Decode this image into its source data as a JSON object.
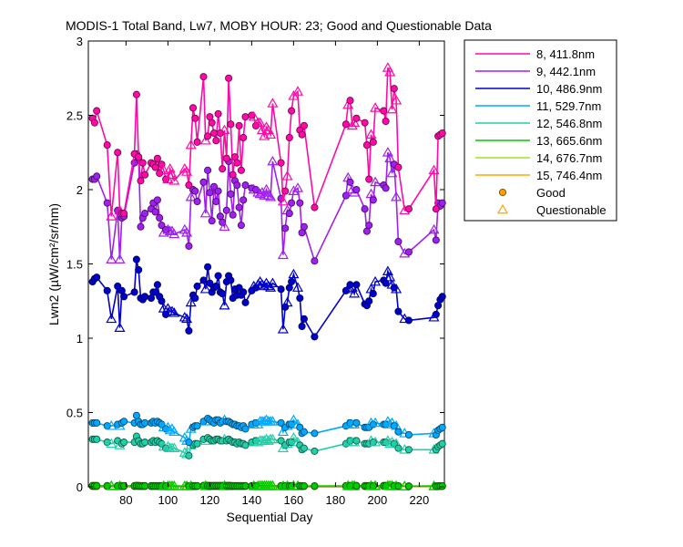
{
  "chart_data": {
    "type": "line",
    "title": "MODIS-1 Total Band, Lw7, MOBY HOUR: 23;  Good and Questionable Data",
    "xlabel": "Sequential Day",
    "ylabel": "Lwn2 (µW/cm²/sr/nm)",
    "xlim": [
      62,
      232
    ],
    "ylim": [
      0,
      3
    ],
    "xticks": [
      "80",
      "100",
      "120",
      "140",
      "160",
      "180",
      "200",
      "220"
    ],
    "yticks": [
      "0",
      "0.5",
      "1",
      "1.5",
      "2",
      "2.5",
      "3"
    ],
    "grid": false,
    "legend_position": "outside-right",
    "legend_markers": {
      "good": "Good",
      "questionable": "Questionable"
    },
    "x": [
      64,
      65,
      66,
      71,
      73,
      76,
      77,
      78,
      79,
      84,
      85,
      86,
      87,
      88,
      89,
      92,
      93,
      94,
      95,
      96,
      97,
      98,
      99,
      100,
      101,
      102,
      103,
      108,
      109,
      110,
      111,
      112,
      113,
      114,
      117,
      118,
      119,
      120,
      121,
      122,
      123,
      124,
      125,
      126,
      127,
      128,
      129,
      130,
      131,
      132,
      133,
      134,
      135,
      136,
      137,
      140,
      141,
      142,
      143,
      144,
      145,
      146,
      147,
      148,
      149,
      150,
      154,
      155,
      156,
      157,
      158,
      159,
      160,
      162,
      163,
      164,
      165,
      170,
      185,
      186,
      187,
      188,
      189,
      190,
      194,
      195,
      196,
      197,
      198,
      199,
      203,
      204,
      205,
      206,
      207,
      208,
      209,
      210,
      213,
      215,
      227,
      228,
      229,
      230,
      231
    ],
    "quality": [
      "G",
      "G",
      "G",
      "G",
      "Q",
      "G",
      "Q",
      "G",
      "G",
      "G",
      "G",
      "G",
      "G",
      "G",
      "G",
      "G",
      "G",
      "G",
      "G",
      "G",
      "G",
      "Q",
      "G",
      "Q",
      "Q",
      "Q",
      "Q",
      "Q",
      "Q",
      "G",
      "Q",
      "G",
      "G",
      "G",
      "G",
      "Q",
      "G",
      "G",
      "G",
      "G",
      "G",
      "G",
      "G",
      "G",
      "Q",
      "G",
      "G",
      "G",
      "G",
      "G",
      "G",
      "G",
      "G",
      "G",
      "G",
      "G",
      "Q",
      "G",
      "Q",
      "Q",
      "Q",
      "Q",
      "Q",
      "Q",
      "Q",
      "Q",
      "G",
      "Q",
      "G",
      "Q",
      "G",
      "G",
      "Q",
      "Q",
      "G",
      "G",
      "G",
      "G",
      "G",
      "Q",
      "G",
      "Q",
      "Q",
      "G",
      "G",
      "G",
      "G",
      "Q",
      "G",
      "Q",
      "G",
      "G",
      "Q",
      "Q",
      "Q",
      "G",
      "Q",
      "G",
      "Q",
      "G",
      "Q",
      "G",
      "G",
      "G",
      "G"
    ],
    "series": [
      {
        "name": "8, 411.8nm",
        "color": "#ff0aa8",
        "values": [
          2.48,
          2.45,
          2.53,
          2.3,
          1.82,
          2.25,
          1.86,
          1.84,
          1.84,
          2.24,
          2.64,
          2.22,
          2.06,
          2.18,
          2.1,
          2.18,
          2.17,
          2.15,
          2.21,
          2.11,
          2.17,
          2.13,
          2.07,
          2.07,
          2.14,
          2.1,
          2.06,
          2.14,
          2.12,
          2.03,
          2.3,
          2.55,
          2.48,
          2.32,
          2.76,
          2.33,
          2.36,
          2.49,
          2.45,
          2.38,
          2.33,
          2.51,
          2.38,
          2.14,
          2.4,
          2.21,
          2.75,
          2.44,
          2.1,
          2.22,
          2.18,
          2.43,
          2.13,
          2.35,
          2.49,
          2.5,
          2.49,
          2.43,
          2.45,
          2.45,
          2.4,
          2.36,
          2.42,
          2.4,
          2.37,
          2.58,
          2.18,
          1.92,
          1.99,
          2.09,
          2.35,
          2.53,
          2.63,
          2.66,
          2.4,
          2.37,
          2.43,
          1.88,
          2.44,
          2.57,
          2.6,
          2.43,
          2.45,
          2.48,
          2.45,
          2.3,
          2.07,
          2.37,
          2.32,
          2.55,
          2.53,
          2.46,
          2.82,
          2.79,
          2.54,
          2.68,
          2.6,
          2.15,
          1.86,
          1.87,
          2.13,
          1.87,
          2.36,
          2.37,
          2.38
        ]
      },
      {
        "name": "9, 442.1nm",
        "color": "#a020f0",
        "values": [
          2.07,
          2.07,
          2.09,
          1.91,
          1.53,
          1.86,
          1.53,
          1.81,
          1.82,
          2.18,
          2.24,
          2.21,
          1.75,
          1.81,
          1.84,
          1.87,
          1.91,
          1.85,
          1.93,
          1.81,
          1.76,
          1.71,
          1.73,
          1.73,
          1.72,
          1.72,
          1.7,
          1.73,
          1.71,
          1.62,
          1.95,
          2.0,
          1.99,
          1.92,
          2.05,
          1.84,
          2.13,
          1.98,
          1.79,
          2.02,
          1.92,
          1.99,
          1.82,
          1.78,
          1.75,
          1.86,
          2.19,
          1.97,
          1.83,
          2.06,
          2.03,
          1.88,
          1.76,
          1.93,
          2.03,
          2.01,
          2.0,
          2.0,
          1.98,
          1.97,
          1.98,
          1.96,
          2.0,
          1.96,
          1.95,
          2.19,
          1.94,
          1.56,
          1.74,
          1.86,
          1.84,
          1.91,
          1.99,
          2.01,
          1.91,
          1.71,
          1.75,
          1.52,
          1.96,
          2.08,
          2.05,
          2.0,
          1.98,
          2.0,
          1.87,
          1.72,
          1.76,
          1.97,
          1.93,
          2.05,
          2.03,
          2.01,
          2.25,
          2.21,
          2.11,
          2.17,
          1.95,
          1.65,
          1.57,
          1.58,
          1.73,
          1.66,
          1.91,
          1.89,
          1.91
        ]
      },
      {
        "name": "10, 486.9nm",
        "color": "#0000cd",
        "values": [
          1.38,
          1.4,
          1.41,
          1.32,
          1.13,
          1.35,
          1.07,
          1.32,
          1.28,
          1.31,
          1.53,
          1.46,
          1.27,
          1.26,
          1.28,
          1.27,
          1.31,
          1.31,
          1.36,
          1.28,
          1.25,
          1.2,
          1.16,
          1.2,
          1.18,
          1.18,
          1.17,
          1.14,
          1.13,
          1.05,
          1.24,
          1.29,
          1.27,
          1.35,
          1.39,
          1.33,
          1.48,
          1.37,
          1.31,
          1.34,
          1.35,
          1.42,
          1.31,
          1.3,
          1.22,
          1.38,
          1.42,
          1.39,
          1.27,
          1.33,
          1.29,
          1.34,
          1.29,
          1.31,
          1.24,
          1.32,
          1.35,
          1.34,
          1.36,
          1.38,
          1.36,
          1.35,
          1.37,
          1.35,
          1.34,
          1.37,
          1.33,
          1.06,
          1.21,
          1.24,
          1.34,
          1.38,
          1.43,
          1.34,
          1.27,
          1.08,
          1.13,
          1.01,
          1.32,
          1.33,
          1.36,
          1.34,
          1.3,
          1.36,
          1.23,
          1.22,
          1.25,
          1.33,
          1.3,
          1.38,
          1.39,
          1.37,
          1.45,
          1.41,
          1.36,
          1.34,
          1.33,
          1.18,
          1.13,
          1.12,
          1.14,
          1.16,
          1.22,
          1.26,
          1.28
        ]
      },
      {
        "name": "11, 529.7nm",
        "color": "#00a8ff",
        "values": [
          0.43,
          0.43,
          0.43,
          0.41,
          0.41,
          0.42,
          0.41,
          0.43,
          0.44,
          0.43,
          0.48,
          0.44,
          0.42,
          0.42,
          0.43,
          0.43,
          0.44,
          0.43,
          0.44,
          0.43,
          0.42,
          0.4,
          0.39,
          0.4,
          0.38,
          0.39,
          0.37,
          0.33,
          0.31,
          0.3,
          0.39,
          0.4,
          0.41,
          0.41,
          0.44,
          0.44,
          0.46,
          0.45,
          0.44,
          0.43,
          0.45,
          0.45,
          0.43,
          0.44,
          0.45,
          0.44,
          0.44,
          0.43,
          0.42,
          0.42,
          0.41,
          0.41,
          0.4,
          0.41,
          0.39,
          0.42,
          0.42,
          0.43,
          0.42,
          0.44,
          0.44,
          0.44,
          0.45,
          0.44,
          0.44,
          0.44,
          0.43,
          0.37,
          0.4,
          0.41,
          0.42,
          0.42,
          0.45,
          0.42,
          0.4,
          0.36,
          0.37,
          0.36,
          0.41,
          0.42,
          0.43,
          0.42,
          0.42,
          0.43,
          0.4,
          0.4,
          0.4,
          0.43,
          0.42,
          0.43,
          0.42,
          0.42,
          0.44,
          0.42,
          0.43,
          0.41,
          0.41,
          0.37,
          0.36,
          0.35,
          0.36,
          0.35,
          0.38,
          0.39,
          0.4
        ]
      },
      {
        "name": "12, 546.8nm",
        "color": "#20d0a8",
        "values": [
          0.32,
          0.32,
          0.32,
          0.3,
          0.29,
          0.31,
          0.28,
          0.29,
          0.3,
          0.3,
          0.34,
          0.31,
          0.29,
          0.29,
          0.3,
          0.3,
          0.31,
          0.3,
          0.31,
          0.3,
          0.29,
          0.27,
          0.26,
          0.27,
          0.26,
          0.26,
          0.26,
          0.23,
          0.22,
          0.21,
          0.28,
          0.28,
          0.29,
          0.29,
          0.32,
          0.31,
          0.33,
          0.32,
          0.31,
          0.31,
          0.32,
          0.32,
          0.31,
          0.31,
          0.32,
          0.31,
          0.32,
          0.31,
          0.3,
          0.3,
          0.29,
          0.3,
          0.29,
          0.29,
          0.28,
          0.3,
          0.3,
          0.31,
          0.3,
          0.31,
          0.31,
          0.31,
          0.32,
          0.31,
          0.32,
          0.32,
          0.31,
          0.26,
          0.28,
          0.29,
          0.3,
          0.3,
          0.33,
          0.3,
          0.28,
          0.25,
          0.26,
          0.24,
          0.29,
          0.3,
          0.31,
          0.3,
          0.3,
          0.31,
          0.29,
          0.29,
          0.29,
          0.31,
          0.3,
          0.3,
          0.3,
          0.3,
          0.31,
          0.29,
          0.3,
          0.29,
          0.29,
          0.26,
          0.25,
          0.25,
          0.25,
          0.25,
          0.27,
          0.28,
          0.29
        ]
      },
      {
        "name": "13, 665.6nm",
        "color": "#00cc00",
        "values": [
          0.007,
          0.007,
          0.007,
          0.006,
          0.006,
          0.006,
          0.006,
          0.006,
          0.006,
          0.006,
          0.008,
          0.007,
          0.006,
          0.006,
          0.006,
          0.006,
          0.006,
          0.006,
          0.006,
          0.006,
          0.006,
          0.006,
          0.005,
          0.005,
          0.005,
          0.005,
          0.005,
          0.005,
          0.005,
          0.005,
          0.006,
          0.006,
          0.006,
          0.006,
          0.008,
          0.007,
          0.008,
          0.007,
          0.007,
          0.007,
          0.007,
          0.007,
          0.007,
          0.007,
          0.007,
          0.007,
          0.008,
          0.007,
          0.006,
          0.006,
          0.006,
          0.006,
          0.006,
          0.006,
          0.006,
          0.006,
          0.006,
          0.006,
          0.006,
          0.007,
          0.007,
          0.007,
          0.007,
          0.007,
          0.007,
          0.007,
          0.006,
          0.005,
          0.006,
          0.006,
          0.006,
          0.006,
          0.007,
          0.006,
          0.006,
          0.005,
          0.005,
          0.005,
          0.006,
          0.007,
          0.007,
          0.007,
          0.007,
          0.007,
          0.006,
          0.006,
          0.006,
          0.007,
          0.006,
          0.007,
          0.007,
          0.007,
          0.008,
          0.007,
          0.007,
          0.007,
          0.006,
          0.005,
          0.004,
          0.004,
          0.005,
          0.004,
          0.005,
          0.005,
          0.005
        ]
      },
      {
        "name": "14, 676.7nm",
        "color": "#a0e020",
        "values": [
          0.008,
          0.008,
          0.008,
          0.007,
          0.007,
          0.007,
          0.007,
          0.007,
          0.007,
          0.007,
          0.009,
          0.008,
          0.007,
          0.007,
          0.007,
          0.007,
          0.007,
          0.007,
          0.007,
          0.007,
          0.007,
          0.007,
          0.006,
          0.006,
          0.006,
          0.006,
          0.006,
          0.006,
          0.006,
          0.006,
          0.007,
          0.007,
          0.007,
          0.007,
          0.009,
          0.008,
          0.009,
          0.008,
          0.008,
          0.008,
          0.008,
          0.008,
          0.008,
          0.008,
          0.008,
          0.008,
          0.009,
          0.008,
          0.007,
          0.007,
          0.007,
          0.007,
          0.007,
          0.007,
          0.007,
          0.007,
          0.007,
          0.007,
          0.007,
          0.008,
          0.008,
          0.008,
          0.008,
          0.008,
          0.008,
          0.008,
          0.007,
          0.006,
          0.007,
          0.007,
          0.007,
          0.007,
          0.008,
          0.007,
          0.007,
          0.006,
          0.006,
          0.006,
          0.007,
          0.008,
          0.008,
          0.008,
          0.008,
          0.008,
          0.007,
          0.007,
          0.007,
          0.008,
          0.007,
          0.008,
          0.008,
          0.008,
          0.009,
          0.008,
          0.008,
          0.008,
          0.007,
          0.006,
          0.005,
          0.005,
          0.006,
          0.005,
          0.006,
          0.006,
          0.006
        ]
      },
      {
        "name": "15, 746.4nm",
        "color": "#ffa500",
        "values": [
          0.003,
          0.003,
          0.003,
          0.003,
          0.003,
          0.003,
          0.003,
          0.003,
          0.003,
          0.003,
          0.004,
          0.003,
          0.003,
          0.003,
          0.003,
          0.003,
          0.003,
          0.003,
          0.003,
          0.003,
          0.003,
          0.003,
          0.003,
          0.003,
          0.003,
          0.003,
          0.003,
          0.003,
          0.003,
          0.003,
          0.003,
          0.003,
          0.003,
          0.003,
          0.004,
          0.003,
          0.004,
          0.003,
          0.003,
          0.003,
          0.003,
          0.003,
          0.003,
          0.003,
          0.003,
          0.003,
          0.004,
          0.003,
          0.003,
          0.003,
          0.003,
          0.003,
          0.003,
          0.003,
          0.003,
          0.003,
          0.003,
          0.003,
          0.003,
          0.003,
          0.003,
          0.003,
          0.003,
          0.003,
          0.003,
          0.003,
          0.003,
          0.003,
          0.003,
          0.003,
          0.003,
          0.003,
          0.003,
          0.003,
          0.003,
          0.003,
          0.003,
          0.003,
          0.003,
          0.003,
          0.003,
          0.003,
          0.003,
          0.003,
          0.003,
          0.003,
          0.003,
          0.003,
          0.003,
          0.003,
          0.003,
          0.003,
          0.004,
          0.003,
          0.003,
          0.003,
          0.003,
          0.003,
          0.002,
          0.002,
          0.003,
          0.002,
          0.003,
          0.003,
          0.003
        ]
      }
    ]
  }
}
